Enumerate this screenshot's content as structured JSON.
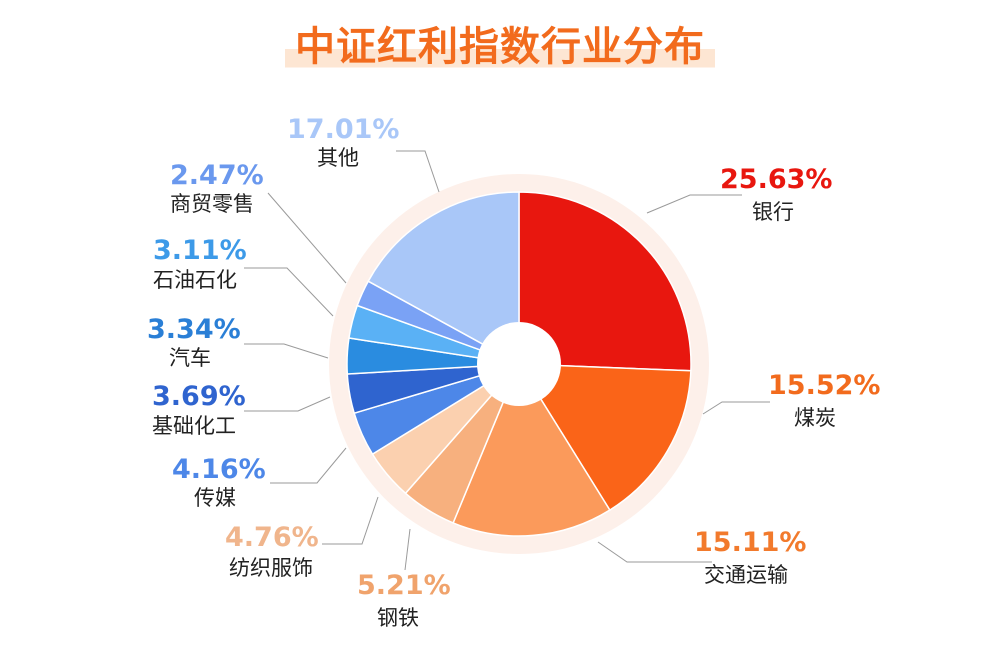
{
  "title": "中证红利指数行业分布",
  "chart_data": {
    "type": "pie",
    "donut": true,
    "slices": [
      {
        "label": "银行",
        "value": 25.63,
        "display": "25.63%",
        "color": "#e8170f"
      },
      {
        "label": "煤炭",
        "value": 15.52,
        "display": "15.52%",
        "color": "#fa6418"
      },
      {
        "label": "交通运输",
        "value": 15.11,
        "display": "15.11%",
        "color": "#fb9a5b"
      },
      {
        "label": "钢铁",
        "value": 5.21,
        "display": "5.21%",
        "color": "#f7b07e"
      },
      {
        "label": "纺织服饰",
        "value": 4.76,
        "display": "4.76%",
        "color": "#fbd0af"
      },
      {
        "label": "传媒",
        "value": 4.16,
        "display": "4.16%",
        "color": "#4d87e8"
      },
      {
        "label": "基础化工",
        "value": 3.69,
        "display": "3.69%",
        "color": "#2f64cf"
      },
      {
        "label": "汽车",
        "value": 3.34,
        "display": "3.34%",
        "color": "#2a8ce0"
      },
      {
        "label": "石油石化",
        "value": 3.11,
        "display": "3.11%",
        "color": "#5ab1f5"
      },
      {
        "label": "商贸零售",
        "value": 2.47,
        "display": "2.47%",
        "color": "#7aa2f5"
      },
      {
        "label": "其他",
        "value": 17.01,
        "display": "17.01%",
        "color": "#a9c7f8"
      }
    ],
    "pct_colors": [
      "#e8170f",
      "#f26b1d",
      "#f27a2c",
      "#f0a36c",
      "#f0b58c",
      "#4d87e8",
      "#2f64cf",
      "#2a7fd6",
      "#3d9ae8",
      "#6a98ee",
      "#a9c7f8"
    ]
  }
}
